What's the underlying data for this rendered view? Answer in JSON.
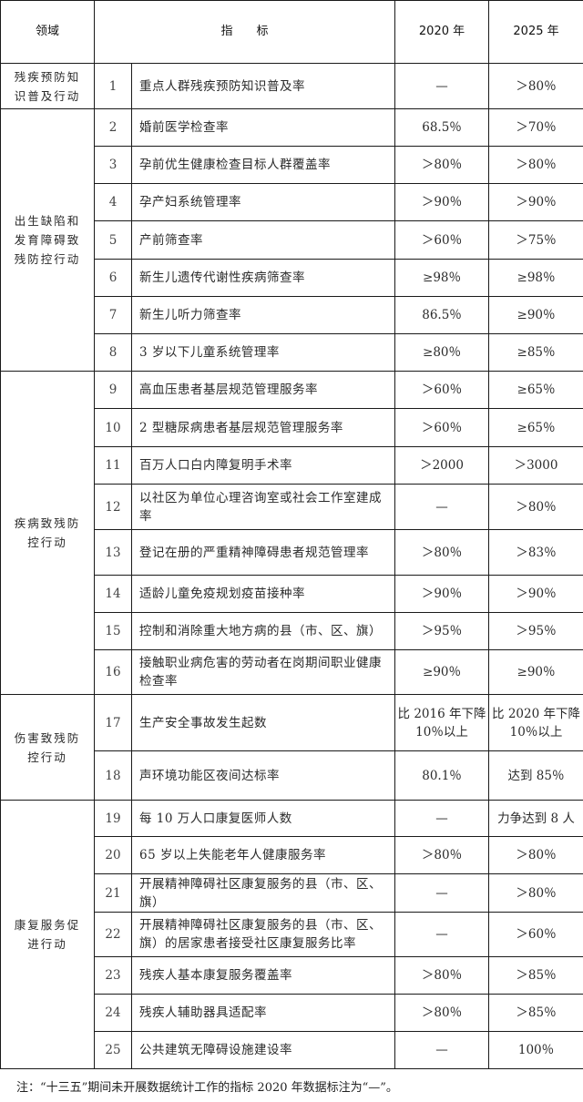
{
  "header": {
    "domain": "领域",
    "indicator": "指　　标",
    "y2020": "2020 年",
    "y2025": "2025 年"
  },
  "groups": [
    {
      "domain": "残疾预防知识普及行动",
      "rows": [
        {
          "no": "1",
          "indicator": "重点人群残疾预防知识普及率",
          "v2020": "—",
          "v2025": "＞80％"
        }
      ]
    },
    {
      "domain": "出生缺陷和发育障碍致残防控行动",
      "rows": [
        {
          "no": "2",
          "indicator": "婚前医学检查率",
          "v2020": "68.5％",
          "v2025": "＞70％"
        },
        {
          "no": "3",
          "indicator": "孕前优生健康检查目标人群覆盖率",
          "v2020": "＞80％",
          "v2025": "＞80％"
        },
        {
          "no": "4",
          "indicator": "孕产妇系统管理率",
          "v2020": "＞90％",
          "v2025": "＞90％"
        },
        {
          "no": "5",
          "indicator": "产前筛查率",
          "v2020": "＞60％",
          "v2025": "＞75％"
        },
        {
          "no": "6",
          "indicator": "新生儿遗传代谢性疾病筛查率",
          "v2020": "≥98％",
          "v2025": "≥98％"
        },
        {
          "no": "7",
          "indicator": "新生儿听力筛查率",
          "v2020": "86.5％",
          "v2025": "≥90％"
        },
        {
          "no": "8",
          "indicator": "3 岁以下儿童系统管理率",
          "v2020": "≥80％",
          "v2025": "≥85％"
        }
      ]
    },
    {
      "domain": "疾病致残防控行动",
      "rows": [
        {
          "no": "9",
          "indicator": "高血压患者基层规范管理服务率",
          "v2020": "＞60％",
          "v2025": "≥65％"
        },
        {
          "no": "10",
          "indicator": "2 型糖尿病患者基层规范管理服务率",
          "v2020": "＞60％",
          "v2025": "≥65％"
        },
        {
          "no": "11",
          "indicator": "百万人口白内障复明手术率",
          "v2020": "＞2000",
          "v2025": "＞3000"
        },
        {
          "no": "12",
          "indicator": "以社区为单位心理咨询室或社会工作室建成率",
          "v2020": "—",
          "v2025": "＞80％"
        },
        {
          "no": "13",
          "indicator": "登记在册的严重精神障碍患者规范管理率",
          "v2020": "＞80％",
          "v2025": "＞83％"
        },
        {
          "no": "14",
          "indicator": "适龄儿童免疫规划疫苗接种率",
          "v2020": "＞90％",
          "v2025": "＞90％"
        },
        {
          "no": "15",
          "indicator": "控制和消除重大地方病的县（市、区、旗）",
          "v2020": "＞95％",
          "v2025": "＞95％"
        },
        {
          "no": "16",
          "indicator": "接触职业病危害的劳动者在岗期间职业健康检查率",
          "v2020": "≥90％",
          "v2025": "≥90％"
        }
      ]
    },
    {
      "domain": "伤害致残防控行动",
      "rows": [
        {
          "no": "17",
          "indicator": "生产安全事故发生起数",
          "v2020": "比 2016 年下降 10％以上",
          "v2025": "比 2020 年下降 10％以上"
        },
        {
          "no": "18",
          "indicator": "声环境功能区夜间达标率",
          "v2020": "80.1％",
          "v2025": "达到 85％"
        }
      ]
    },
    {
      "domain": "康复服务促进行动",
      "rows": [
        {
          "no": "19",
          "indicator": "每 10 万人口康复医师人数",
          "v2020": "—",
          "v2025": "力争达到 8 人"
        },
        {
          "no": "20",
          "indicator": "65 岁以上失能老年人健康服务率",
          "v2020": "＞80％",
          "v2025": "＞80％"
        },
        {
          "no": "21",
          "indicator": "开展精神障碍社区康复服务的县（市、区、旗）",
          "v2020": "—",
          "v2025": "＞80％"
        },
        {
          "no": "22",
          "indicator": "开展精神障碍社区康复服务的县（市、区、旗）的居家患者接受社区康复服务比率",
          "v2020": "—",
          "v2025": "＞60％"
        },
        {
          "no": "23",
          "indicator": "残疾人基本康复服务覆盖率",
          "v2020": "＞80％",
          "v2025": "＞85％"
        },
        {
          "no": "24",
          "indicator": "残疾人辅助器具适配率",
          "v2020": "＞80％",
          "v2025": "＞85％"
        },
        {
          "no": "25",
          "indicator": "公共建筑无障碍设施建设率",
          "v2020": "—",
          "v2025": "100％"
        }
      ]
    }
  ],
  "note": "注：“十三五”期间未开展数据统计工作的指标 2020 年数据标注为“—”。"
}
